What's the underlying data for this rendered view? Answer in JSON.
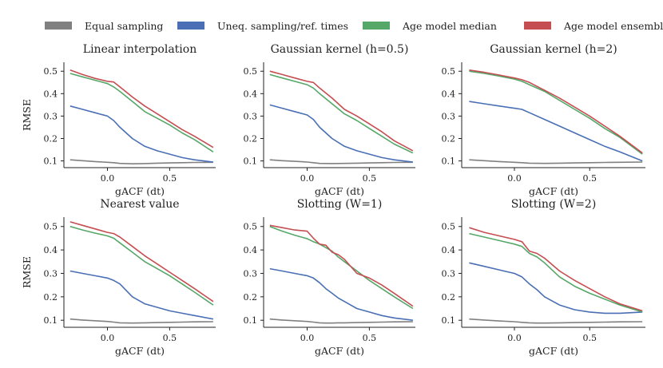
{
  "legend": {
    "items": [
      {
        "label": "Equal sampling",
        "color": "#808080"
      },
      {
        "label": "Uneq. sampling/ref. times",
        "color": "#4a6fb5"
      },
      {
        "label": "Age model median",
        "color": "#55a868"
      },
      {
        "label": "Age model ensemble",
        "color": "#c44e52"
      }
    ]
  },
  "chart_data": [
    {
      "type": "line",
      "title": "Linear interpolation",
      "xlabel": "gACF (dt)",
      "ylabel": "RMSE",
      "xlim": [
        -0.35,
        0.87
      ],
      "ylim": [
        0.07,
        0.54
      ],
      "xticks": [
        "0.0",
        "0.5"
      ],
      "yticks": [
        "0.1",
        "0.2",
        "0.3",
        "0.4",
        "0.5"
      ],
      "x": [
        -0.3,
        -0.2,
        -0.1,
        0.0,
        0.05,
        0.1,
        0.2,
        0.3,
        0.4,
        0.5,
        0.6,
        0.7,
        0.85
      ],
      "series": [
        {
          "name": "Equal sampling",
          "values": [
            0.105,
            0.101,
            0.097,
            0.094,
            0.092,
            0.089,
            0.087,
            0.088,
            0.09,
            0.091,
            0.092,
            0.093,
            0.094
          ]
        },
        {
          "name": "Uneq. sampling/ref. times",
          "values": [
            0.345,
            0.33,
            0.315,
            0.3,
            0.28,
            0.25,
            0.2,
            0.165,
            0.145,
            0.13,
            0.115,
            0.105,
            0.095
          ]
        },
        {
          "name": "Age model median",
          "values": [
            0.49,
            0.475,
            0.46,
            0.445,
            0.43,
            0.41,
            0.365,
            0.32,
            0.29,
            0.26,
            0.225,
            0.195,
            0.14
          ]
        },
        {
          "name": "Age model ensemble",
          "values": [
            0.505,
            0.485,
            0.468,
            0.455,
            0.452,
            0.43,
            0.385,
            0.345,
            0.31,
            0.275,
            0.24,
            0.21,
            0.16
          ]
        }
      ]
    },
    {
      "type": "line",
      "title": "Gaussian kernel (h=0.5)",
      "xlabel": "gACF (dt)",
      "ylabel": "",
      "xlim": [
        -0.35,
        0.87
      ],
      "ylim": [
        0.07,
        0.54
      ],
      "xticks": [
        "0.0",
        "0.5"
      ],
      "yticks": [
        "0.1",
        "0.2",
        "0.3",
        "0.4",
        "0.5"
      ],
      "x": [
        -0.3,
        -0.2,
        -0.1,
        0.0,
        0.05,
        0.1,
        0.2,
        0.3,
        0.4,
        0.5,
        0.6,
        0.7,
        0.85
      ],
      "series": [
        {
          "name": "Equal sampling",
          "values": [
            0.105,
            0.101,
            0.098,
            0.095,
            0.092,
            0.089,
            0.088,
            0.089,
            0.09,
            0.091,
            0.092,
            0.093,
            0.094
          ]
        },
        {
          "name": "Uneq. sampling/ref. times",
          "values": [
            0.35,
            0.335,
            0.32,
            0.305,
            0.285,
            0.25,
            0.2,
            0.165,
            0.145,
            0.13,
            0.115,
            0.105,
            0.095
          ]
        },
        {
          "name": "Age model median",
          "values": [
            0.485,
            0.47,
            0.455,
            0.44,
            0.425,
            0.4,
            0.355,
            0.31,
            0.28,
            0.245,
            0.21,
            0.175,
            0.135
          ]
        },
        {
          "name": "Age model ensemble",
          "values": [
            0.5,
            0.485,
            0.47,
            0.455,
            0.45,
            0.425,
            0.38,
            0.33,
            0.3,
            0.265,
            0.23,
            0.19,
            0.145
          ]
        }
      ]
    },
    {
      "type": "line",
      "title": "Gaussian kernel (h=2)",
      "xlabel": "gACF (dt)",
      "ylabel": "",
      "xlim": [
        -0.35,
        0.87
      ],
      "ylim": [
        0.07,
        0.54
      ],
      "xticks": [
        "0.0",
        "0.5"
      ],
      "yticks": [
        "0.1",
        "0.2",
        "0.3",
        "0.4",
        "0.5"
      ],
      "x": [
        -0.3,
        -0.2,
        -0.1,
        0.0,
        0.05,
        0.1,
        0.2,
        0.3,
        0.4,
        0.5,
        0.6,
        0.7,
        0.85
      ],
      "series": [
        {
          "name": "Equal sampling",
          "values": [
            0.105,
            0.101,
            0.097,
            0.094,
            0.092,
            0.09,
            0.089,
            0.09,
            0.091,
            0.092,
            0.093,
            0.094,
            0.095
          ]
        },
        {
          "name": "Uneq. sampling/ref. times",
          "values": [
            0.365,
            0.355,
            0.345,
            0.335,
            0.33,
            0.315,
            0.285,
            0.255,
            0.225,
            0.195,
            0.165,
            0.14,
            0.1
          ]
        },
        {
          "name": "Age model median",
          "values": [
            0.5,
            0.49,
            0.478,
            0.465,
            0.455,
            0.44,
            0.41,
            0.37,
            0.33,
            0.29,
            0.245,
            0.205,
            0.13
          ]
        },
        {
          "name": "Age model ensemble",
          "values": [
            0.505,
            0.495,
            0.483,
            0.47,
            0.462,
            0.45,
            0.415,
            0.38,
            0.34,
            0.3,
            0.255,
            0.21,
            0.135
          ]
        }
      ]
    },
    {
      "type": "line",
      "title": "Nearest value",
      "xlabel": "gACF (dt)",
      "ylabel": "RMSE",
      "xlim": [
        -0.35,
        0.87
      ],
      "ylim": [
        0.07,
        0.54
      ],
      "xticks": [
        "0.0",
        "0.5"
      ],
      "yticks": [
        "0.1",
        "0.2",
        "0.3",
        "0.4",
        "0.5"
      ],
      "x": [
        -0.3,
        -0.2,
        -0.1,
        0.0,
        0.05,
        0.1,
        0.2,
        0.3,
        0.4,
        0.5,
        0.6,
        0.7,
        0.85
      ],
      "series": [
        {
          "name": "Equal sampling",
          "values": [
            0.105,
            0.101,
            0.098,
            0.095,
            0.092,
            0.089,
            0.088,
            0.089,
            0.09,
            0.091,
            0.092,
            0.093,
            0.094
          ]
        },
        {
          "name": "Uneq. sampling/ref. times",
          "values": [
            0.31,
            0.3,
            0.29,
            0.28,
            0.27,
            0.255,
            0.2,
            0.17,
            0.155,
            0.14,
            0.13,
            0.12,
            0.105
          ]
        },
        {
          "name": "Age model median",
          "values": [
            0.5,
            0.485,
            0.472,
            0.46,
            0.45,
            0.43,
            0.39,
            0.35,
            0.32,
            0.29,
            0.255,
            0.22,
            0.165
          ]
        },
        {
          "name": "Age model ensemble",
          "values": [
            0.52,
            0.505,
            0.49,
            0.475,
            0.47,
            0.455,
            0.415,
            0.375,
            0.34,
            0.305,
            0.27,
            0.235,
            0.18
          ]
        }
      ]
    },
    {
      "type": "line",
      "title": "Slotting (W=1)",
      "xlabel": "gACF (dt)",
      "ylabel": "",
      "xlim": [
        -0.35,
        0.87
      ],
      "ylim": [
        0.07,
        0.54
      ],
      "xticks": [
        "0.0",
        "0.5"
      ],
      "yticks": [
        "0.1",
        "0.2",
        "0.3",
        "0.4",
        "0.5"
      ],
      "x": [
        -0.3,
        -0.2,
        -0.1,
        0.0,
        0.05,
        0.1,
        0.15,
        0.2,
        0.25,
        0.3,
        0.4,
        0.5,
        0.6,
        0.7,
        0.85
      ],
      "series": [
        {
          "name": "Equal sampling",
          "values": [
            0.105,
            0.101,
            0.098,
            0.095,
            0.092,
            0.089,
            0.088,
            0.088,
            0.089,
            0.089,
            0.09,
            0.091,
            0.092,
            0.093,
            0.094
          ]
        },
        {
          "name": "Uneq. sampling/ref. times",
          "values": [
            0.32,
            0.31,
            0.3,
            0.29,
            0.28,
            0.26,
            0.235,
            0.215,
            0.195,
            0.18,
            0.15,
            0.135,
            0.12,
            0.11,
            0.1
          ]
        },
        {
          "name": "Age model median",
          "values": [
            0.5,
            0.48,
            0.463,
            0.448,
            0.435,
            0.425,
            0.41,
            0.395,
            0.37,
            0.35,
            0.31,
            0.27,
            0.235,
            0.2,
            0.15
          ]
        },
        {
          "name": "Age model ensemble",
          "values": [
            0.505,
            0.495,
            0.485,
            0.48,
            0.45,
            0.425,
            0.42,
            0.39,
            0.38,
            0.36,
            0.3,
            0.28,
            0.25,
            0.215,
            0.16
          ]
        }
      ]
    },
    {
      "type": "line",
      "title": "Slotting (W=2)",
      "xlabel": "gACF (dt)",
      "ylabel": "",
      "xlim": [
        -0.35,
        0.87
      ],
      "ylim": [
        0.07,
        0.54
      ],
      "xticks": [
        "0.0",
        "0.5"
      ],
      "yticks": [
        "0.1",
        "0.2",
        "0.3",
        "0.4",
        "0.5"
      ],
      "x": [
        -0.3,
        -0.2,
        -0.1,
        0.0,
        0.05,
        0.1,
        0.15,
        0.2,
        0.3,
        0.4,
        0.5,
        0.6,
        0.7,
        0.85
      ],
      "series": [
        {
          "name": "Equal sampling",
          "values": [
            0.105,
            0.101,
            0.097,
            0.094,
            0.091,
            0.089,
            0.088,
            0.088,
            0.089,
            0.09,
            0.091,
            0.092,
            0.093,
            0.094
          ]
        },
        {
          "name": "Uneq. sampling/ref. times",
          "values": [
            0.345,
            0.33,
            0.315,
            0.3,
            0.285,
            0.255,
            0.23,
            0.2,
            0.165,
            0.145,
            0.135,
            0.13,
            0.13,
            0.135
          ]
        },
        {
          "name": "Age model median",
          "values": [
            0.47,
            0.455,
            0.44,
            0.425,
            0.415,
            0.385,
            0.37,
            0.345,
            0.285,
            0.245,
            0.215,
            0.19,
            0.165,
            0.135
          ]
        },
        {
          "name": "Age model ensemble",
          "values": [
            0.495,
            0.475,
            0.46,
            0.445,
            0.435,
            0.395,
            0.385,
            0.365,
            0.31,
            0.27,
            0.235,
            0.2,
            0.17,
            0.14
          ]
        }
      ]
    }
  ]
}
